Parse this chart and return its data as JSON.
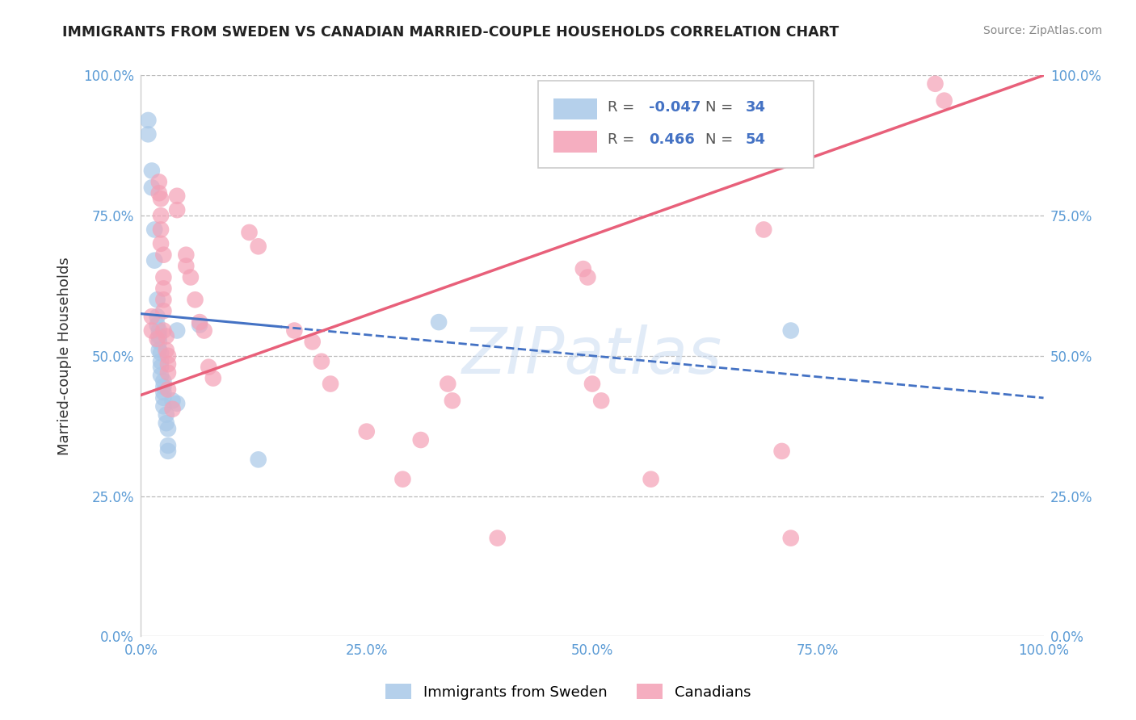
{
  "title": "IMMIGRANTS FROM SWEDEN VS CANADIAN MARRIED-COUPLE HOUSEHOLDS CORRELATION CHART",
  "source": "Source: ZipAtlas.com",
  "ylabel": "Married-couple Households",
  "xlim": [
    0.0,
    1.0
  ],
  "ylim": [
    0.0,
    1.0
  ],
  "xticks": [
    0.0,
    0.25,
    0.5,
    0.75,
    1.0
  ],
  "yticks": [
    0.0,
    0.25,
    0.5,
    0.75,
    1.0
  ],
  "xtick_labels": [
    "0.0%",
    "25.0%",
    "50.0%",
    "75.0%",
    "100.0%"
  ],
  "ytick_labels": [
    "0.0%",
    "25.0%",
    "50.0%",
    "75.0%",
    "100.0%"
  ],
  "blue_color": "#A8C8E8",
  "pink_color": "#F4A0B5",
  "blue_line_color": "#4472C4",
  "pink_line_color": "#E8607A",
  "blue_R": -0.047,
  "blue_N": 34,
  "pink_R": 0.466,
  "pink_N": 54,
  "legend_entries": [
    "Immigrants from Sweden",
    "Canadians"
  ],
  "watermark": "ZIPatlas",
  "tick_color": "#5B9BD5",
  "grid_color": "#BBBBBB",
  "title_color": "#222222",
  "source_color": "#888888",
  "ylabel_color": "#333333",
  "blue_line_y0": 0.575,
  "blue_line_y1": 0.425,
  "pink_line_y0": 0.43,
  "pink_line_y1": 1.0,
  "blue_points_x": [
    0.008,
    0.008,
    0.012,
    0.012,
    0.015,
    0.015,
    0.018,
    0.018,
    0.018,
    0.02,
    0.02,
    0.02,
    0.02,
    0.022,
    0.022,
    0.022,
    0.022,
    0.025,
    0.025,
    0.025,
    0.025,
    0.025,
    0.028,
    0.028,
    0.03,
    0.03,
    0.03,
    0.035,
    0.04,
    0.04,
    0.065,
    0.13,
    0.33,
    0.72
  ],
  "blue_points_y": [
    0.92,
    0.895,
    0.83,
    0.8,
    0.725,
    0.67,
    0.6,
    0.57,
    0.555,
    0.545,
    0.535,
    0.525,
    0.51,
    0.505,
    0.49,
    0.48,
    0.465,
    0.455,
    0.445,
    0.435,
    0.425,
    0.41,
    0.395,
    0.38,
    0.37,
    0.34,
    0.33,
    0.42,
    0.545,
    0.415,
    0.555,
    0.315,
    0.56,
    0.545
  ],
  "pink_points_x": [
    0.012,
    0.012,
    0.018,
    0.02,
    0.02,
    0.022,
    0.022,
    0.022,
    0.022,
    0.025,
    0.025,
    0.025,
    0.025,
    0.025,
    0.025,
    0.028,
    0.028,
    0.03,
    0.03,
    0.03,
    0.03,
    0.035,
    0.04,
    0.04,
    0.05,
    0.05,
    0.055,
    0.06,
    0.065,
    0.07,
    0.075,
    0.08,
    0.12,
    0.13,
    0.17,
    0.19,
    0.2,
    0.21,
    0.25,
    0.29,
    0.31,
    0.34,
    0.345,
    0.395,
    0.49,
    0.495,
    0.5,
    0.51,
    0.565,
    0.69,
    0.71,
    0.72,
    0.88,
    0.89
  ],
  "pink_points_y": [
    0.57,
    0.545,
    0.53,
    0.81,
    0.79,
    0.78,
    0.75,
    0.725,
    0.7,
    0.68,
    0.64,
    0.62,
    0.6,
    0.58,
    0.545,
    0.535,
    0.51,
    0.5,
    0.485,
    0.47,
    0.44,
    0.405,
    0.785,
    0.76,
    0.68,
    0.66,
    0.64,
    0.6,
    0.56,
    0.545,
    0.48,
    0.46,
    0.72,
    0.695,
    0.545,
    0.525,
    0.49,
    0.45,
    0.365,
    0.28,
    0.35,
    0.45,
    0.42,
    0.175,
    0.655,
    0.64,
    0.45,
    0.42,
    0.28,
    0.725,
    0.33,
    0.175,
    0.985,
    0.955
  ]
}
